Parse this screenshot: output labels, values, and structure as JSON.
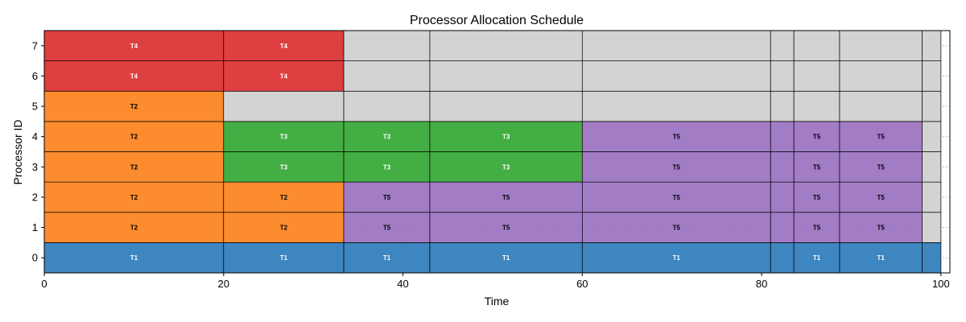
{
  "chart_data": {
    "type": "gantt",
    "title": "Processor Allocation Schedule",
    "xlabel": "Time",
    "ylabel": "Processor ID",
    "xlim": [
      0,
      101
    ],
    "ylim": [
      -0.5,
      7.5
    ],
    "xticks": [
      0,
      20,
      40,
      60,
      80,
      100
    ],
    "yticks": [
      0,
      1,
      2,
      3,
      4,
      5,
      6,
      7
    ],
    "grid": true,
    "boundaries": [
      0,
      20,
      33.4,
      43,
      60,
      81,
      83.6,
      88.7,
      97.9,
      100
    ],
    "idle_color": "#d3d3d3",
    "task_colors": {
      "T1": "#3a84bf",
      "T2": "#fd8a2a",
      "T3": "#3fac3f",
      "T4": "#dd3b3c",
      "T5": "#a07ac5"
    },
    "label_colors": {
      "T1": "#ffffff",
      "T2": "#000000",
      "T3": "#ffffff",
      "T4": "#ffffff",
      "T5": "#000000"
    },
    "segments": [
      {
        "p": 0,
        "start": 0,
        "end": 20,
        "task": "T1",
        "label": "T1"
      },
      {
        "p": 0,
        "start": 20,
        "end": 33.4,
        "task": "T1",
        "label": "T1"
      },
      {
        "p": 0,
        "start": 33.4,
        "end": 43,
        "task": "T1",
        "label": "T1"
      },
      {
        "p": 0,
        "start": 43,
        "end": 60,
        "task": "T1",
        "label": "T1"
      },
      {
        "p": 0,
        "start": 60,
        "end": 81,
        "task": "T1",
        "label": "T1"
      },
      {
        "p": 0,
        "start": 81,
        "end": 83.6,
        "task": "T1",
        "label": ""
      },
      {
        "p": 0,
        "start": 83.6,
        "end": 88.7,
        "task": "T1",
        "label": "T1"
      },
      {
        "p": 0,
        "start": 88.7,
        "end": 97.9,
        "task": "T1",
        "label": "T1"
      },
      {
        "p": 0,
        "start": 97.9,
        "end": 100,
        "task": "T1",
        "label": ""
      },
      {
        "p": 1,
        "start": 0,
        "end": 20,
        "task": "T2",
        "label": "T2"
      },
      {
        "p": 1,
        "start": 20,
        "end": 33.4,
        "task": "T2",
        "label": "T2"
      },
      {
        "p": 1,
        "start": 33.4,
        "end": 43,
        "task": "T5",
        "label": "T5"
      },
      {
        "p": 1,
        "start": 43,
        "end": 60,
        "task": "T5",
        "label": "T5"
      },
      {
        "p": 1,
        "start": 60,
        "end": 81,
        "task": "T5",
        "label": "T5"
      },
      {
        "p": 1,
        "start": 81,
        "end": 83.6,
        "task": "T5",
        "label": ""
      },
      {
        "p": 1,
        "start": 83.6,
        "end": 88.7,
        "task": "T5",
        "label": "T5"
      },
      {
        "p": 1,
        "start": 88.7,
        "end": 97.9,
        "task": "T5",
        "label": "T5"
      },
      {
        "p": 1,
        "start": 97.9,
        "end": 100,
        "task": "idle",
        "label": ""
      },
      {
        "p": 2,
        "start": 0,
        "end": 20,
        "task": "T2",
        "label": "T2"
      },
      {
        "p": 2,
        "start": 20,
        "end": 33.4,
        "task": "T2",
        "label": "T2"
      },
      {
        "p": 2,
        "start": 33.4,
        "end": 43,
        "task": "T5",
        "label": "T5"
      },
      {
        "p": 2,
        "start": 43,
        "end": 60,
        "task": "T5",
        "label": "T5"
      },
      {
        "p": 2,
        "start": 60,
        "end": 81,
        "task": "T5",
        "label": "T5"
      },
      {
        "p": 2,
        "start": 81,
        "end": 83.6,
        "task": "T5",
        "label": ""
      },
      {
        "p": 2,
        "start": 83.6,
        "end": 88.7,
        "task": "T5",
        "label": "T5"
      },
      {
        "p": 2,
        "start": 88.7,
        "end": 97.9,
        "task": "T5",
        "label": "T5"
      },
      {
        "p": 2,
        "start": 97.9,
        "end": 100,
        "task": "idle",
        "label": ""
      },
      {
        "p": 3,
        "start": 0,
        "end": 20,
        "task": "T2",
        "label": "T2"
      },
      {
        "p": 3,
        "start": 20,
        "end": 33.4,
        "task": "T3",
        "label": "T3"
      },
      {
        "p": 3,
        "start": 33.4,
        "end": 43,
        "task": "T3",
        "label": "T3"
      },
      {
        "p": 3,
        "start": 43,
        "end": 60,
        "task": "T3",
        "label": "T3"
      },
      {
        "p": 3,
        "start": 60,
        "end": 81,
        "task": "T5",
        "label": "T5"
      },
      {
        "p": 3,
        "start": 81,
        "end": 83.6,
        "task": "T5",
        "label": ""
      },
      {
        "p": 3,
        "start": 83.6,
        "end": 88.7,
        "task": "T5",
        "label": "T5"
      },
      {
        "p": 3,
        "start": 88.7,
        "end": 97.9,
        "task": "T5",
        "label": "T5"
      },
      {
        "p": 3,
        "start": 97.9,
        "end": 100,
        "task": "idle",
        "label": ""
      },
      {
        "p": 4,
        "start": 0,
        "end": 20,
        "task": "T2",
        "label": "T2"
      },
      {
        "p": 4,
        "start": 20,
        "end": 33.4,
        "task": "T3",
        "label": "T3"
      },
      {
        "p": 4,
        "start": 33.4,
        "end": 43,
        "task": "T3",
        "label": "T3"
      },
      {
        "p": 4,
        "start": 43,
        "end": 60,
        "task": "T3",
        "label": "T3"
      },
      {
        "p": 4,
        "start": 60,
        "end": 81,
        "task": "T5",
        "label": "T5"
      },
      {
        "p": 4,
        "start": 81,
        "end": 83.6,
        "task": "T5",
        "label": ""
      },
      {
        "p": 4,
        "start": 83.6,
        "end": 88.7,
        "task": "T5",
        "label": "T5"
      },
      {
        "p": 4,
        "start": 88.7,
        "end": 97.9,
        "task": "T5",
        "label": "T5"
      },
      {
        "p": 4,
        "start": 97.9,
        "end": 100,
        "task": "idle",
        "label": ""
      },
      {
        "p": 5,
        "start": 0,
        "end": 20,
        "task": "T2",
        "label": "T2"
      },
      {
        "p": 5,
        "start": 20,
        "end": 33.4,
        "task": "idle",
        "label": ""
      },
      {
        "p": 5,
        "start": 33.4,
        "end": 43,
        "task": "idle",
        "label": ""
      },
      {
        "p": 5,
        "start": 43,
        "end": 60,
        "task": "idle",
        "label": ""
      },
      {
        "p": 5,
        "start": 60,
        "end": 81,
        "task": "idle",
        "label": ""
      },
      {
        "p": 5,
        "start": 81,
        "end": 83.6,
        "task": "idle",
        "label": ""
      },
      {
        "p": 5,
        "start": 83.6,
        "end": 88.7,
        "task": "idle",
        "label": ""
      },
      {
        "p": 5,
        "start": 88.7,
        "end": 97.9,
        "task": "idle",
        "label": ""
      },
      {
        "p": 5,
        "start": 97.9,
        "end": 100,
        "task": "idle",
        "label": ""
      },
      {
        "p": 6,
        "start": 0,
        "end": 20,
        "task": "T4",
        "label": "T4"
      },
      {
        "p": 6,
        "start": 20,
        "end": 33.4,
        "task": "T4",
        "label": "T4"
      },
      {
        "p": 6,
        "start": 33.4,
        "end": 43,
        "task": "idle",
        "label": ""
      },
      {
        "p": 6,
        "start": 43,
        "end": 60,
        "task": "idle",
        "label": ""
      },
      {
        "p": 6,
        "start": 60,
        "end": 81,
        "task": "idle",
        "label": ""
      },
      {
        "p": 6,
        "start": 81,
        "end": 83.6,
        "task": "idle",
        "label": ""
      },
      {
        "p": 6,
        "start": 83.6,
        "end": 88.7,
        "task": "idle",
        "label": ""
      },
      {
        "p": 6,
        "start": 88.7,
        "end": 97.9,
        "task": "idle",
        "label": ""
      },
      {
        "p": 6,
        "start": 97.9,
        "end": 100,
        "task": "idle",
        "label": ""
      },
      {
        "p": 7,
        "start": 0,
        "end": 20,
        "task": "T4",
        "label": "T4"
      },
      {
        "p": 7,
        "start": 20,
        "end": 33.4,
        "task": "T4",
        "label": "T4"
      },
      {
        "p": 7,
        "start": 33.4,
        "end": 43,
        "task": "idle",
        "label": ""
      },
      {
        "p": 7,
        "start": 43,
        "end": 60,
        "task": "idle",
        "label": ""
      },
      {
        "p": 7,
        "start": 60,
        "end": 81,
        "task": "idle",
        "label": ""
      },
      {
        "p": 7,
        "start": 81,
        "end": 83.6,
        "task": "idle",
        "label": ""
      },
      {
        "p": 7,
        "start": 83.6,
        "end": 88.7,
        "task": "idle",
        "label": ""
      },
      {
        "p": 7,
        "start": 88.7,
        "end": 97.9,
        "task": "idle",
        "label": ""
      },
      {
        "p": 7,
        "start": 97.9,
        "end": 100,
        "task": "idle",
        "label": ""
      }
    ]
  }
}
